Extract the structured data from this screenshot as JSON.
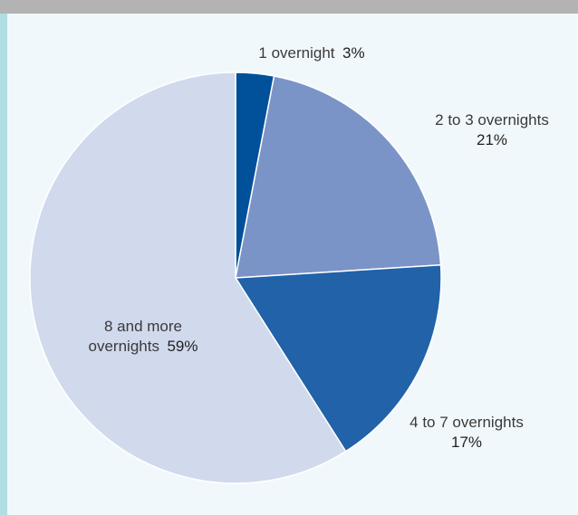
{
  "chart_data": {
    "type": "pie",
    "start_angle_deg": 0,
    "direction": "clockwise",
    "slices": [
      {
        "label_lines": [
          "1 overnight"
        ],
        "value": 3,
        "percent_text": "3%",
        "color": "#00509a",
        "label_layout": "inline"
      },
      {
        "label_lines": [
          "2 to 3 overnights"
        ],
        "value": 21,
        "percent_text": "21%",
        "color": "#7b94c7",
        "label_layout": "stacked"
      },
      {
        "label_lines": [
          "4 to 7 overnights"
        ],
        "value": 17,
        "percent_text": "17%",
        "color": "#2162a9",
        "label_layout": "stacked"
      },
      {
        "label_lines": [
          "8 and more",
          "overnights"
        ],
        "value": 59,
        "percent_text": "59%",
        "color": "#d1d9ed",
        "label_layout": "inline-last"
      }
    ]
  },
  "colors": {
    "background": "#f1f8fb",
    "top_band": "#b3b3b3",
    "left_band": "#b1dde4",
    "slice_border": "#ffffff"
  }
}
